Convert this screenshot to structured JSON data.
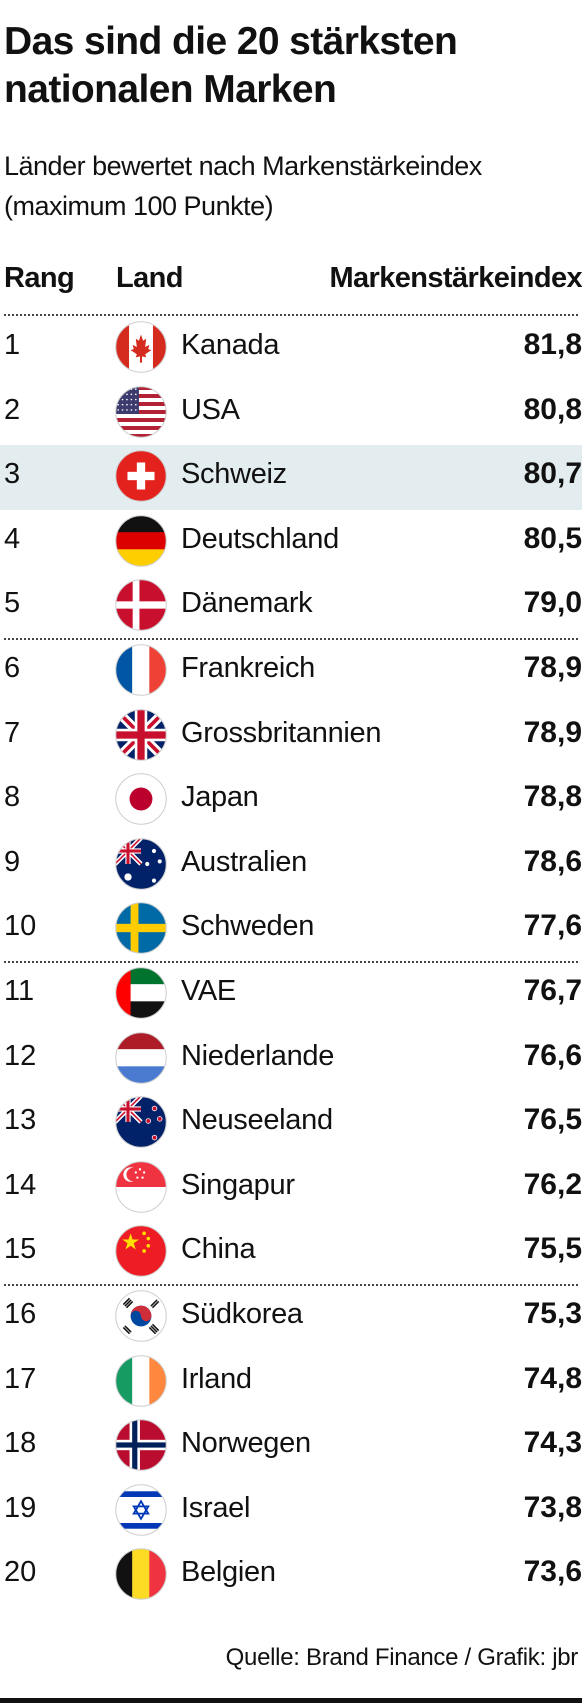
{
  "chart_data": {
    "type": "table",
    "title": "Das sind die 20 stärksten nationalen Marken",
    "title_lines": [
      "Das sind die 20 stärksten",
      "nationalen Marken"
    ],
    "subtitle_lines": [
      "Länder bewertet nach Markenstärkeindex",
      "(maximum 100 Punkte)"
    ],
    "columns": [
      "Rang",
      "Land",
      "Markenstärkeindex"
    ],
    "highlight_rank": 3,
    "rows": [
      {
        "rank": "1",
        "country": "Kanada",
        "value": "81,8",
        "flag": "canada-flag-icon"
      },
      {
        "rank": "2",
        "country": "USA",
        "value": "80,8",
        "flag": "usa-flag-icon"
      },
      {
        "rank": "3",
        "country": "Schweiz",
        "value": "80,7",
        "flag": "switzerland-flag-icon"
      },
      {
        "rank": "4",
        "country": "Deutschland",
        "value": "80,5",
        "flag": "germany-flag-icon"
      },
      {
        "rank": "5",
        "country": "Dänemark",
        "value": "79,0",
        "flag": "denmark-flag-icon"
      },
      {
        "rank": "6",
        "country": "Frankreich",
        "value": "78,9",
        "flag": "france-flag-icon"
      },
      {
        "rank": "7",
        "country": "Grossbritannien",
        "value": "78,9",
        "flag": "uk-flag-icon"
      },
      {
        "rank": "8",
        "country": "Japan",
        "value": "78,8",
        "flag": "japan-flag-icon"
      },
      {
        "rank": "9",
        "country": "Australien",
        "value": "78,6",
        "flag": "australia-flag-icon"
      },
      {
        "rank": "10",
        "country": "Schweden",
        "value": "77,6",
        "flag": "sweden-flag-icon"
      },
      {
        "rank": "11",
        "country": "VAE",
        "value": "76,7",
        "flag": "uae-flag-icon"
      },
      {
        "rank": "12",
        "country": "Niederlande",
        "value": "76,6",
        "flag": "netherlands-flag-icon"
      },
      {
        "rank": "13",
        "country": "Neuseeland",
        "value": "76,5",
        "flag": "new-zealand-flag-icon"
      },
      {
        "rank": "14",
        "country": "Singapur",
        "value": "76,2",
        "flag": "singapore-flag-icon"
      },
      {
        "rank": "15",
        "country": "China",
        "value": "75,5",
        "flag": "china-flag-icon"
      },
      {
        "rank": "16",
        "country": "Südkorea",
        "value": "75,3",
        "flag": "south-korea-flag-icon"
      },
      {
        "rank": "17",
        "country": "Irland",
        "value": "74,8",
        "flag": "ireland-flag-icon"
      },
      {
        "rank": "18",
        "country": "Norwegen",
        "value": "74,3",
        "flag": "norway-flag-icon"
      },
      {
        "rank": "19",
        "country": "Israel",
        "value": "73,8",
        "flag": "israel-flag-icon"
      },
      {
        "rank": "20",
        "country": "Belgien",
        "value": "73,6",
        "flag": "belgium-flag-icon"
      }
    ],
    "source": "Quelle: Brand Finance / Grafik: jbr",
    "colors": {
      "highlight_row": "#e3edef",
      "text": "#111111"
    }
  }
}
